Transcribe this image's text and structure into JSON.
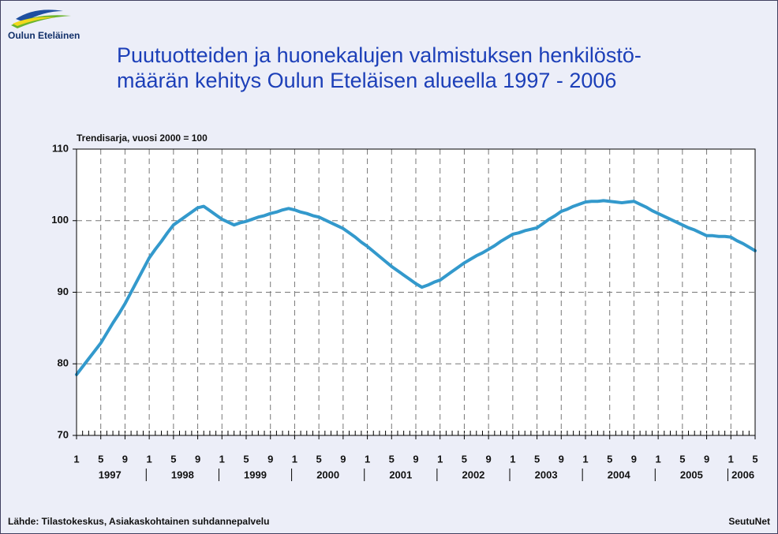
{
  "logo": "Oulun Eteläinen",
  "source": "Lähde: Tilastokeskus, Asiakaskohtainen suhdannepalvelu",
  "publisher": "SeutuNet",
  "chart_data": {
    "type": "line",
    "title": [
      "Puutuotteiden ja huonekalujen valmistuksen henkilöstö-",
      "määrän kehitys Oulun Eteläisen alueella 1997 - 2006"
    ],
    "subtitle": "Trendisarja, vuosi 2000 = 100",
    "categories": [
      "1",
      null,
      null,
      null,
      "5",
      null,
      null,
      null,
      "9",
      null,
      null,
      null,
      "1",
      null,
      null,
      null,
      "5",
      null,
      null,
      null,
      "9",
      null,
      null,
      null,
      "1",
      null,
      null,
      null,
      "5",
      null,
      null,
      null,
      "9",
      null,
      null,
      null,
      "1",
      null,
      null,
      null,
      "5",
      null,
      null,
      null,
      "9",
      null,
      null,
      null,
      "1",
      null,
      null,
      null,
      "5",
      null,
      null,
      null,
      "9",
      null,
      null,
      null,
      "1",
      null,
      null,
      null,
      "5",
      null,
      null,
      null,
      "9",
      null,
      null,
      null,
      "1",
      null,
      null,
      null,
      "5",
      null,
      null,
      null,
      "9",
      null,
      null,
      null,
      "1",
      null,
      null,
      null,
      "5",
      null,
      null,
      null,
      "9",
      null,
      null,
      null,
      "1",
      null,
      null,
      null,
      "5",
      null,
      null,
      null,
      "9",
      null,
      null,
      null,
      "1",
      null,
      null,
      null,
      "5"
    ],
    "years": [
      "1997",
      "1998",
      "1999",
      "2000",
      "2001",
      "2002",
      "2003",
      "2004",
      "2005",
      "2006"
    ],
    "series": [
      {
        "color": "#3399cc",
        "values": [
          78.5,
          79.6,
          80.7,
          81.8,
          82.9,
          84.3,
          85.7,
          87.0,
          88.4,
          90.0,
          91.6,
          93.2,
          94.8,
          96.0,
          97.1,
          98.3,
          99.4,
          100.0,
          100.6,
          101.2,
          101.8,
          102.0,
          101.4,
          100.8,
          100.2,
          99.8,
          99.4,
          99.7,
          99.9,
          100.2,
          100.5,
          100.7,
          101.0,
          101.2,
          101.5,
          101.7,
          101.5,
          101.2,
          101.0,
          100.7,
          100.5,
          100.1,
          99.7,
          99.3,
          98.9,
          98.3,
          97.7,
          97.0,
          96.4,
          95.7,
          95.0,
          94.3,
          93.6,
          93.0,
          92.4,
          91.8,
          91.2,
          90.7,
          91.0,
          91.4,
          91.7,
          92.3,
          92.9,
          93.5,
          94.1,
          94.6,
          95.1,
          95.5,
          96.0,
          96.5,
          97.1,
          97.6,
          98.1,
          98.3,
          98.6,
          98.8,
          99.0,
          99.6,
          100.2,
          100.7,
          101.3,
          101.6,
          102.0,
          102.3,
          102.6,
          102.7,
          102.7,
          102.8,
          102.7,
          102.6,
          102.5,
          102.6,
          102.7,
          102.3,
          101.9,
          101.4,
          101.0,
          100.6,
          100.2,
          99.8,
          99.4,
          99.0,
          98.7,
          98.3,
          97.9,
          97.9,
          97.8,
          97.8,
          97.7,
          97.2,
          96.8,
          96.3,
          95.8
        ]
      }
    ],
    "ylim": [
      70,
      110
    ],
    "yticks": [
      70,
      80,
      90,
      100,
      110
    ],
    "grid": true
  }
}
